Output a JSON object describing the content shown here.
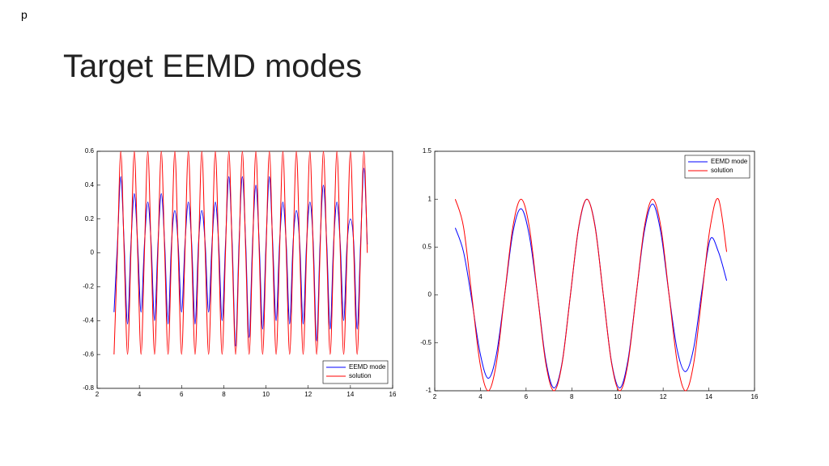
{
  "page": {
    "marker": "p",
    "title": "Target EEMD modes"
  },
  "chart_data": [
    {
      "type": "line",
      "legend": "lower right",
      "xlim": [
        2,
        16
      ],
      "xticks": [
        2,
        4,
        6,
        8,
        10,
        12,
        14,
        16
      ],
      "ylim": [
        -0.8,
        0.6
      ],
      "yticks": [
        -0.8,
        -0.6,
        -0.4,
        -0.2,
        0,
        0.2,
        0.4,
        0.6
      ],
      "x": [
        2.8,
        2.96,
        3.12,
        3.28,
        3.44,
        3.6,
        3.76,
        3.92,
        4.08,
        4.24,
        4.4,
        4.56,
        4.72,
        4.88,
        5.04,
        5.2,
        5.36,
        5.52,
        5.68,
        5.84,
        6.0,
        6.16,
        6.32,
        6.48,
        6.64,
        6.8,
        6.96,
        7.12,
        7.28,
        7.44,
        7.6,
        7.76,
        7.92,
        8.08,
        8.24,
        8.4,
        8.56,
        8.72,
        8.88,
        9.04,
        9.2,
        9.36,
        9.52,
        9.68,
        9.84,
        10.0,
        10.16,
        10.32,
        10.48,
        10.64,
        10.8,
        10.96,
        11.12,
        11.28,
        11.44,
        11.6,
        11.76,
        11.92,
        12.08,
        12.24,
        12.4,
        12.56,
        12.72,
        12.88,
        13.04,
        13.2,
        13.36,
        13.52,
        13.68,
        13.84,
        14.0,
        14.16,
        14.32,
        14.48,
        14.64,
        14.8
      ],
      "series": [
        {
          "name": "EEMD mode",
          "color": "#0000ff",
          "values": [
            -0.35,
            0.05,
            0.45,
            0.05,
            -0.42,
            0.05,
            0.35,
            0.05,
            -0.35,
            0.05,
            0.3,
            0.05,
            -0.4,
            0.05,
            0.35,
            0.05,
            -0.42,
            0.05,
            0.25,
            0.05,
            -0.35,
            0.05,
            0.3,
            0.05,
            -0.42,
            0.05,
            0.25,
            0.05,
            -0.35,
            0.05,
            0.3,
            0.05,
            -0.4,
            0.05,
            0.45,
            0.05,
            -0.55,
            0.05,
            0.45,
            0.05,
            -0.5,
            0.05,
            0.4,
            0.05,
            -0.45,
            0.05,
            0.45,
            0.05,
            -0.4,
            0.05,
            0.3,
            0.05,
            -0.42,
            0.05,
            0.25,
            0.05,
            -0.42,
            0.05,
            0.3,
            0.05,
            -0.52,
            0.05,
            0.4,
            0.05,
            -0.45,
            0.05,
            0.3,
            0.05,
            -0.4,
            0.05,
            0.2,
            0.05,
            -0.45,
            0.05,
            0.5,
            0.05
          ]
        },
        {
          "name": "solution",
          "color": "#ff0000",
          "values": [
            -0.6,
            0,
            0.6,
            0,
            -0.6,
            0,
            0.6,
            0,
            -0.6,
            0,
            0.6,
            0,
            -0.6,
            0,
            0.6,
            0,
            -0.6,
            0,
            0.6,
            0,
            -0.6,
            0,
            0.6,
            0,
            -0.6,
            0,
            0.6,
            0,
            -0.6,
            0,
            0.6,
            0,
            -0.6,
            0,
            0.6,
            0,
            -0.6,
            0,
            0.6,
            0,
            -0.6,
            0,
            0.6,
            0,
            -0.6,
            0,
            0.6,
            0,
            -0.6,
            0,
            0.6,
            0,
            -0.6,
            0,
            0.6,
            0,
            -0.6,
            0,
            0.6,
            0,
            -0.6,
            0,
            0.6,
            0,
            -0.6,
            0,
            0.6,
            0,
            -0.6,
            0,
            0.6,
            0,
            -0.6,
            0,
            0.6,
            0
          ]
        }
      ]
    },
    {
      "type": "line",
      "legend": "upper right",
      "xlim": [
        2,
        16
      ],
      "xticks": [
        2,
        4,
        6,
        8,
        10,
        12,
        14,
        16
      ],
      "ylim": [
        -1,
        1.5
      ],
      "yticks": [
        -1,
        -0.5,
        0,
        0.5,
        1,
        1.5
      ],
      "x": [
        2.9,
        3.26,
        3.62,
        3.98,
        4.34,
        4.7,
        5.06,
        5.42,
        5.78,
        6.14,
        6.5,
        6.86,
        7.22,
        7.58,
        7.94,
        8.3,
        8.66,
        9.02,
        9.38,
        9.74,
        10.1,
        10.46,
        10.82,
        11.18,
        11.54,
        11.9,
        12.26,
        12.62,
        12.98,
        13.34,
        13.7,
        14.06,
        14.42,
        14.78
      ],
      "series": [
        {
          "name": "EEMD mode",
          "color": "#0000ff",
          "values": [
            0.7,
            0.45,
            -0.05,
            -0.6,
            -0.87,
            -0.62,
            0,
            0.65,
            0.9,
            0.62,
            0,
            -0.68,
            -0.97,
            -0.7,
            0,
            0.7,
            1.0,
            0.72,
            0,
            -0.7,
            -0.97,
            -0.68,
            0,
            0.67,
            0.95,
            0.65,
            0,
            -0.58,
            -0.8,
            -0.55,
            0.05,
            0.58,
            0.45,
            0.15
          ]
        },
        {
          "name": "solution",
          "color": "#ff0000",
          "values": [
            1,
            0.71,
            0,
            -0.71,
            -1,
            -0.71,
            0,
            0.71,
            1,
            0.71,
            0,
            -0.71,
            -1,
            -0.71,
            0,
            0.71,
            1,
            0.71,
            0,
            -0.71,
            -1,
            -0.71,
            0,
            0.71,
            1,
            0.71,
            0,
            -0.71,
            -1,
            -0.71,
            0,
            0.71,
            1,
            0.45
          ]
        }
      ]
    }
  ]
}
